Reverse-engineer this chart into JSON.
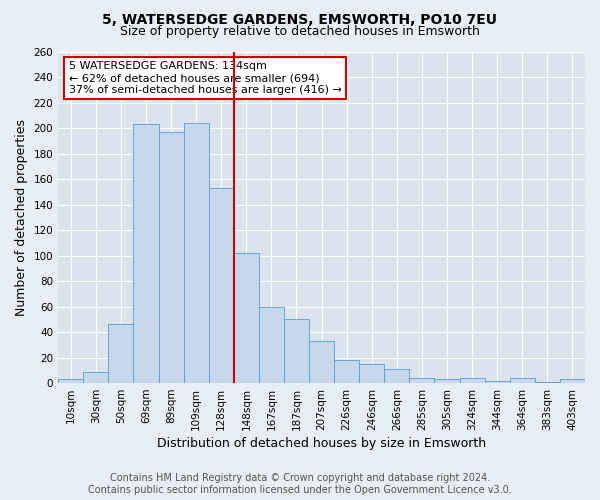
{
  "title": "5, WATERSEDGE GARDENS, EMSWORTH, PO10 7EU",
  "subtitle": "Size of property relative to detached houses in Emsworth",
  "xlabel": "Distribution of detached houses by size in Emsworth",
  "ylabel": "Number of detached properties",
  "bar_labels": [
    "10sqm",
    "30sqm",
    "50sqm",
    "69sqm",
    "89sqm",
    "109sqm",
    "128sqm",
    "148sqm",
    "167sqm",
    "187sqm",
    "207sqm",
    "226sqm",
    "246sqm",
    "266sqm",
    "285sqm",
    "305sqm",
    "324sqm",
    "344sqm",
    "364sqm",
    "383sqm",
    "403sqm"
  ],
  "bar_values": [
    3,
    9,
    46,
    203,
    197,
    204,
    153,
    102,
    60,
    50,
    33,
    18,
    15,
    11,
    4,
    3,
    4,
    2,
    4,
    1,
    3
  ],
  "bar_color": "#c6d9ec",
  "bar_edge_color": "#5b9bd5",
  "vline_pos": 6.5,
  "vline_color": "#cc0000",
  "ylim": [
    0,
    260
  ],
  "yticks": [
    0,
    20,
    40,
    60,
    80,
    100,
    120,
    140,
    160,
    180,
    200,
    220,
    240,
    260
  ],
  "annotation_title": "5 WATERSEDGE GARDENS: 134sqm",
  "annotation_line1": "← 62% of detached houses are smaller (694)",
  "annotation_line2": "37% of semi-detached houses are larger (416) →",
  "annotation_box_color": "#ffffff",
  "annotation_box_edge": "#cc0000",
  "footer_line1": "Contains HM Land Registry data © Crown copyright and database right 2024.",
  "footer_line2": "Contains public sector information licensed under the Open Government Licence v3.0.",
  "bg_color": "#e8eef5",
  "plot_bg_color": "#d9e4ef",
  "title_fontsize": 10,
  "subtitle_fontsize": 9,
  "axis_label_fontsize": 9,
  "tick_fontsize": 7.5,
  "footer_fontsize": 7,
  "ann_fontsize": 8
}
